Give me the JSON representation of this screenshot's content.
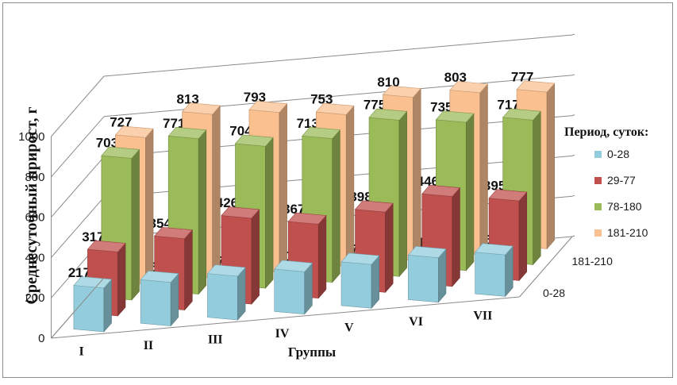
{
  "chart_data": {
    "type": "bar",
    "variant": "3d-clustered-depth",
    "ylabel": "Среднесуточный  прирост, г",
    "xlabel": "Группы",
    "ylim": [
      0,
      1000
    ],
    "yticks": [
      0,
      200,
      400,
      600,
      800,
      1000
    ],
    "categories": [
      "I",
      "II",
      "III",
      "IV",
      "V",
      "VI",
      "VII"
    ],
    "depth_axis_labels": [
      "0-28",
      "181-210"
    ],
    "legend_title": "Период, суток:",
    "legend_position": "right",
    "series": [
      {
        "name": "0-28",
        "color": "#93CDDD",
        "values": [
          217,
          216,
          217,
          210,
          217,
          221,
          206
        ]
      },
      {
        "name": "29-77",
        "color": "#C0504D",
        "values": [
          317,
          354,
          426,
          367,
          398,
          446,
          395
        ]
      },
      {
        "name": "78-180",
        "color": "#9BBB59",
        "values": [
          703,
          771,
          704,
          713,
          775,
          735,
          717
        ]
      },
      {
        "name": "181-210",
        "color": "#FAC090",
        "values": [
          727,
          813,
          793,
          753,
          810,
          803,
          777
        ]
      }
    ]
  }
}
